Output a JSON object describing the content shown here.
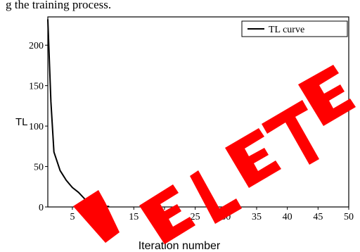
{
  "page": {
    "caption_fragment": "g the training process."
  },
  "chart_data": {
    "type": "line",
    "ylabel": "TL",
    "xlabel": "Iteration number",
    "xlim": [
      1,
      50
    ],
    "ylim": [
      0,
      235
    ],
    "xticks": [
      5,
      10,
      15,
      20,
      25,
      30,
      35,
      40,
      45,
      50
    ],
    "yticks": [
      0,
      50,
      100,
      150,
      200
    ],
    "grid": false,
    "legend": {
      "position": "top-right",
      "entries": [
        "TL curve"
      ]
    },
    "series": [
      {
        "name": "TL curve",
        "color": "#000000",
        "x": [
          1,
          1.5,
          2,
          3,
          4,
          5,
          6,
          7,
          8,
          9,
          10,
          11
        ],
        "y": [
          232,
          130,
          68,
          45,
          33,
          24,
          18,
          10,
          5,
          2.5,
          1,
          0.5
        ]
      }
    ]
  },
  "overlay": {
    "stamp_text": "DELETE",
    "stamp_color": "#ff0000"
  }
}
